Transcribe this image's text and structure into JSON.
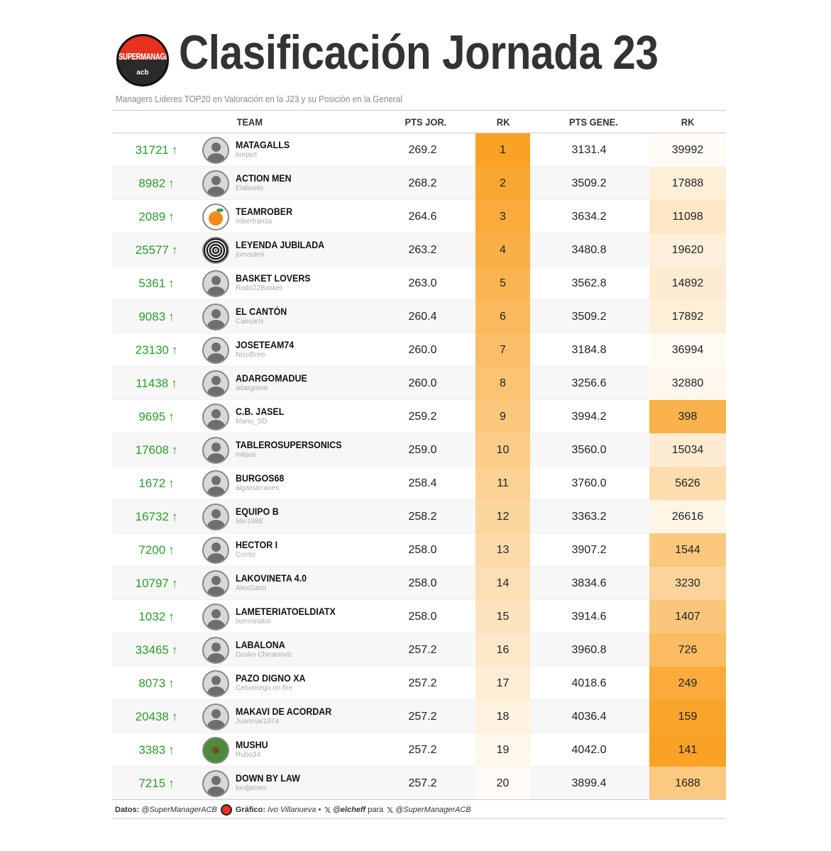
{
  "header": {
    "logo_text": "SUPERMANAGER",
    "logo_sub": "acb",
    "title": "Clasificación Jornada 23",
    "subtitle": "Managers Lideres TOP20 en Valoración en la J23 y su Posición en la General"
  },
  "columns": {
    "team": "TEAM",
    "pts_jor": "PTS JOR.",
    "rk_jor": "RK",
    "pts_gen": "PTS GENE.",
    "rk_gen": "RK"
  },
  "accent_color": "#f9a226",
  "change_color": "#2a9d2a",
  "rows": [
    {
      "change": "31721",
      "name": "MATAGALLS",
      "user": "borjact",
      "avatar": "default",
      "pts_jor": "269.2",
      "rk_jor": 1,
      "pts_gen": "3131.4",
      "rk_gen": 39992
    },
    {
      "change": "8982",
      "name": "ACTION MEN",
      "user": "Elabuelo",
      "avatar": "default",
      "pts_jor": "268.2",
      "rk_jor": 2,
      "pts_gen": "3509.2",
      "rk_gen": 17888
    },
    {
      "change": "2089",
      "name": "TEAMROBER",
      "user": "roberfranza",
      "avatar": "orange",
      "pts_jor": "264.6",
      "rk_jor": 3,
      "pts_gen": "3634.2",
      "rk_gen": 11098
    },
    {
      "change": "25577",
      "name": "LEYENDA JUBILADA",
      "user": "jomoolmi",
      "avatar": "spiral",
      "pts_jor": "263.2",
      "rk_jor": 4,
      "pts_gen": "3480.8",
      "rk_gen": 19620
    },
    {
      "change": "5361",
      "name": "BASKET LOVERS",
      "user": "Rodri22Basket",
      "avatar": "default",
      "pts_jor": "263.0",
      "rk_jor": 5,
      "pts_gen": "3562.8",
      "rk_gen": 14892
    },
    {
      "change": "9083",
      "name": "EL CANTÓN",
      "user": "Caesaris",
      "avatar": "default",
      "pts_jor": "260.4",
      "rk_jor": 6,
      "pts_gen": "3509.2",
      "rk_gen": 17892
    },
    {
      "change": "23130",
      "name": "JOSETEAM74",
      "user": "NicoBreo",
      "avatar": "default",
      "pts_jor": "260.0",
      "rk_jor": 7,
      "pts_gen": "3184.8",
      "rk_gen": 36994
    },
    {
      "change": "11438",
      "name": "ADARGOMADUE",
      "user": "adargoma",
      "avatar": "default",
      "pts_jor": "260.0",
      "rk_jor": 8,
      "pts_gen": "3256.6",
      "rk_gen": 32880
    },
    {
      "change": "9695",
      "name": "C.B. JASEL",
      "user": "Manu_SD",
      "avatar": "default",
      "pts_jor": "259.2",
      "rk_jor": 9,
      "pts_gen": "3994.2",
      "rk_gen": 398
    },
    {
      "change": "17608",
      "name": "TABLEROSUPERSONICS",
      "user": "mlipus",
      "avatar": "default",
      "pts_jor": "259.0",
      "rk_jor": 10,
      "pts_gen": "3560.0",
      "rk_gen": 15034
    },
    {
      "change": "1672",
      "name": "BURGOS68",
      "user": "algamarranes",
      "avatar": "default",
      "pts_jor": "258.4",
      "rk_jor": 11,
      "pts_gen": "3760.0",
      "rk_gen": 5626
    },
    {
      "change": "16732",
      "name": "EQUIPO B",
      "user": "Miri1986",
      "avatar": "default",
      "pts_jor": "258.2",
      "rk_jor": 12,
      "pts_gen": "3363.2",
      "rk_gen": 26616
    },
    {
      "change": "7200",
      "name": "HECTOR I",
      "user": "Contic",
      "avatar": "default",
      "pts_jor": "258.0",
      "rk_jor": 13,
      "pts_gen": "3907.2",
      "rk_gen": 1544
    },
    {
      "change": "10797",
      "name": "LAKOVINETA 4.0",
      "user": "AlexGacu",
      "avatar": "default",
      "pts_jor": "258.0",
      "rk_jor": 14,
      "pts_gen": "3834.6",
      "rk_gen": 3230
    },
    {
      "change": "1032",
      "name": "LAMETERIATOELDIATX",
      "user": "txerminator",
      "avatar": "default",
      "pts_jor": "258.0",
      "rk_jor": 15,
      "pts_gen": "3914.6",
      "rk_gen": 1407
    },
    {
      "change": "33465",
      "name": "LABALONA",
      "user": "Dusko Chicanovic",
      "avatar": "default",
      "pts_jor": "257.2",
      "rk_jor": 16,
      "pts_gen": "3960.8",
      "rk_gen": 726
    },
    {
      "change": "8073",
      "name": "PAZO DIGNO XA",
      "user": "Cebreirego on fire",
      "avatar": "default",
      "pts_jor": "257.2",
      "rk_jor": 17,
      "pts_gen": "4018.6",
      "rk_gen": 249
    },
    {
      "change": "20438",
      "name": "MAKAVI DE ACORDAR",
      "user": "Juanmar1974",
      "avatar": "default",
      "pts_jor": "257.2",
      "rk_jor": 18,
      "pts_gen": "4036.4",
      "rk_gen": 159
    },
    {
      "change": "3383",
      "name": "MUSHU",
      "user": "Rubo34",
      "avatar": "green",
      "pts_jor": "257.2",
      "rk_jor": 19,
      "pts_gen": "4042.0",
      "rk_gen": 141
    },
    {
      "change": "7215",
      "name": "DOWN BY LAW",
      "user": "lordjames",
      "avatar": "default",
      "pts_jor": "257.2",
      "rk_jor": 20,
      "pts_gen": "3899.4",
      "rk_gen": 1688
    }
  ],
  "footer": {
    "datos_label": "Datos:",
    "datos_value": "@SuperManagerACB",
    "grafico_label": "Gráfico:",
    "grafico_value": "Ivo Villanueva •",
    "x1": "𝕏",
    "author_handle": "@elcheff",
    "para": "para",
    "x2": "𝕏",
    "source_handle": "@SuperManagerACB"
  }
}
